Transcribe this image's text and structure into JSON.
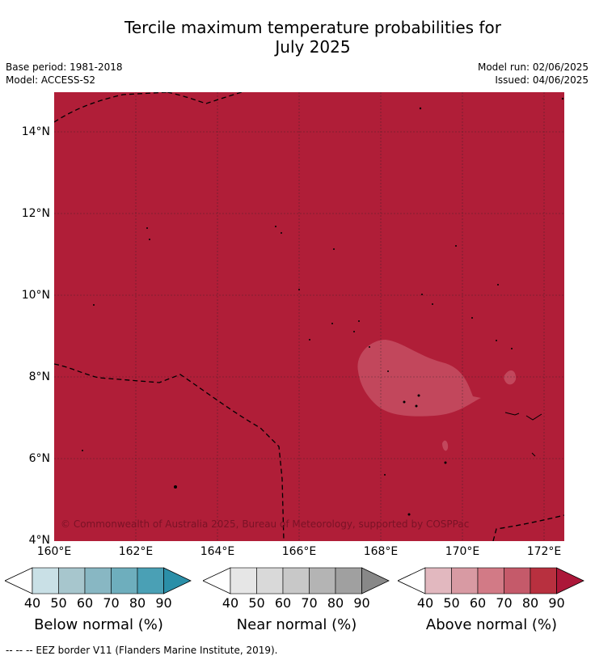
{
  "title_line1": "Tercile maximum temperature probabilities for",
  "title_line2": "July 2025",
  "base_period": "Base period: 1981-2018",
  "model": "Model: ACCESS-S2",
  "model_run": "Model run: 02/06/2025",
  "issued": "Issued: 04/06/2025",
  "copyright": "© Commonwealth of Australia 2025, Bureau of Meteorology, supported by COSPPac",
  "map": {
    "background_color": "#b01e38",
    "lower_probability_color": "#c2475c",
    "lat_labels": [
      "14°N",
      "12°N",
      "10°N",
      "8°N",
      "6°N",
      "4°N"
    ],
    "lon_labels": [
      "160°E",
      "162°E",
      "164°E",
      "166°E",
      "168°E",
      "170°E",
      "172°E"
    ]
  },
  "colorbars": [
    {
      "label": "Below normal (%)",
      "colors": [
        "#c9e0e6",
        "#a7c6cd",
        "#88b7c3",
        "#6eaebd",
        "#4aa0b5",
        "#2b8fa8"
      ],
      "ticks": [
        "40",
        "50",
        "60",
        "70",
        "80",
        "90"
      ]
    },
    {
      "label": "Near normal (%)",
      "colors": [
        "#e6e6e6",
        "#d9d9d9",
        "#c8c8c8",
        "#b4b4b4",
        "#a0a0a0",
        "#888888"
      ],
      "ticks": [
        "40",
        "50",
        "60",
        "70",
        "80",
        "90"
      ]
    },
    {
      "label": "Above normal (%)",
      "colors": [
        "#e2b8bf",
        "#d89aa3",
        "#d27a86",
        "#c55a6a",
        "#b8303f",
        "#ac1739"
      ],
      "ticks": [
        "40",
        "50",
        "60",
        "70",
        "80",
        "90"
      ]
    }
  ],
  "footer": "-- -- -- EEZ border V11 (Flanders Marine Institute, 2019)."
}
